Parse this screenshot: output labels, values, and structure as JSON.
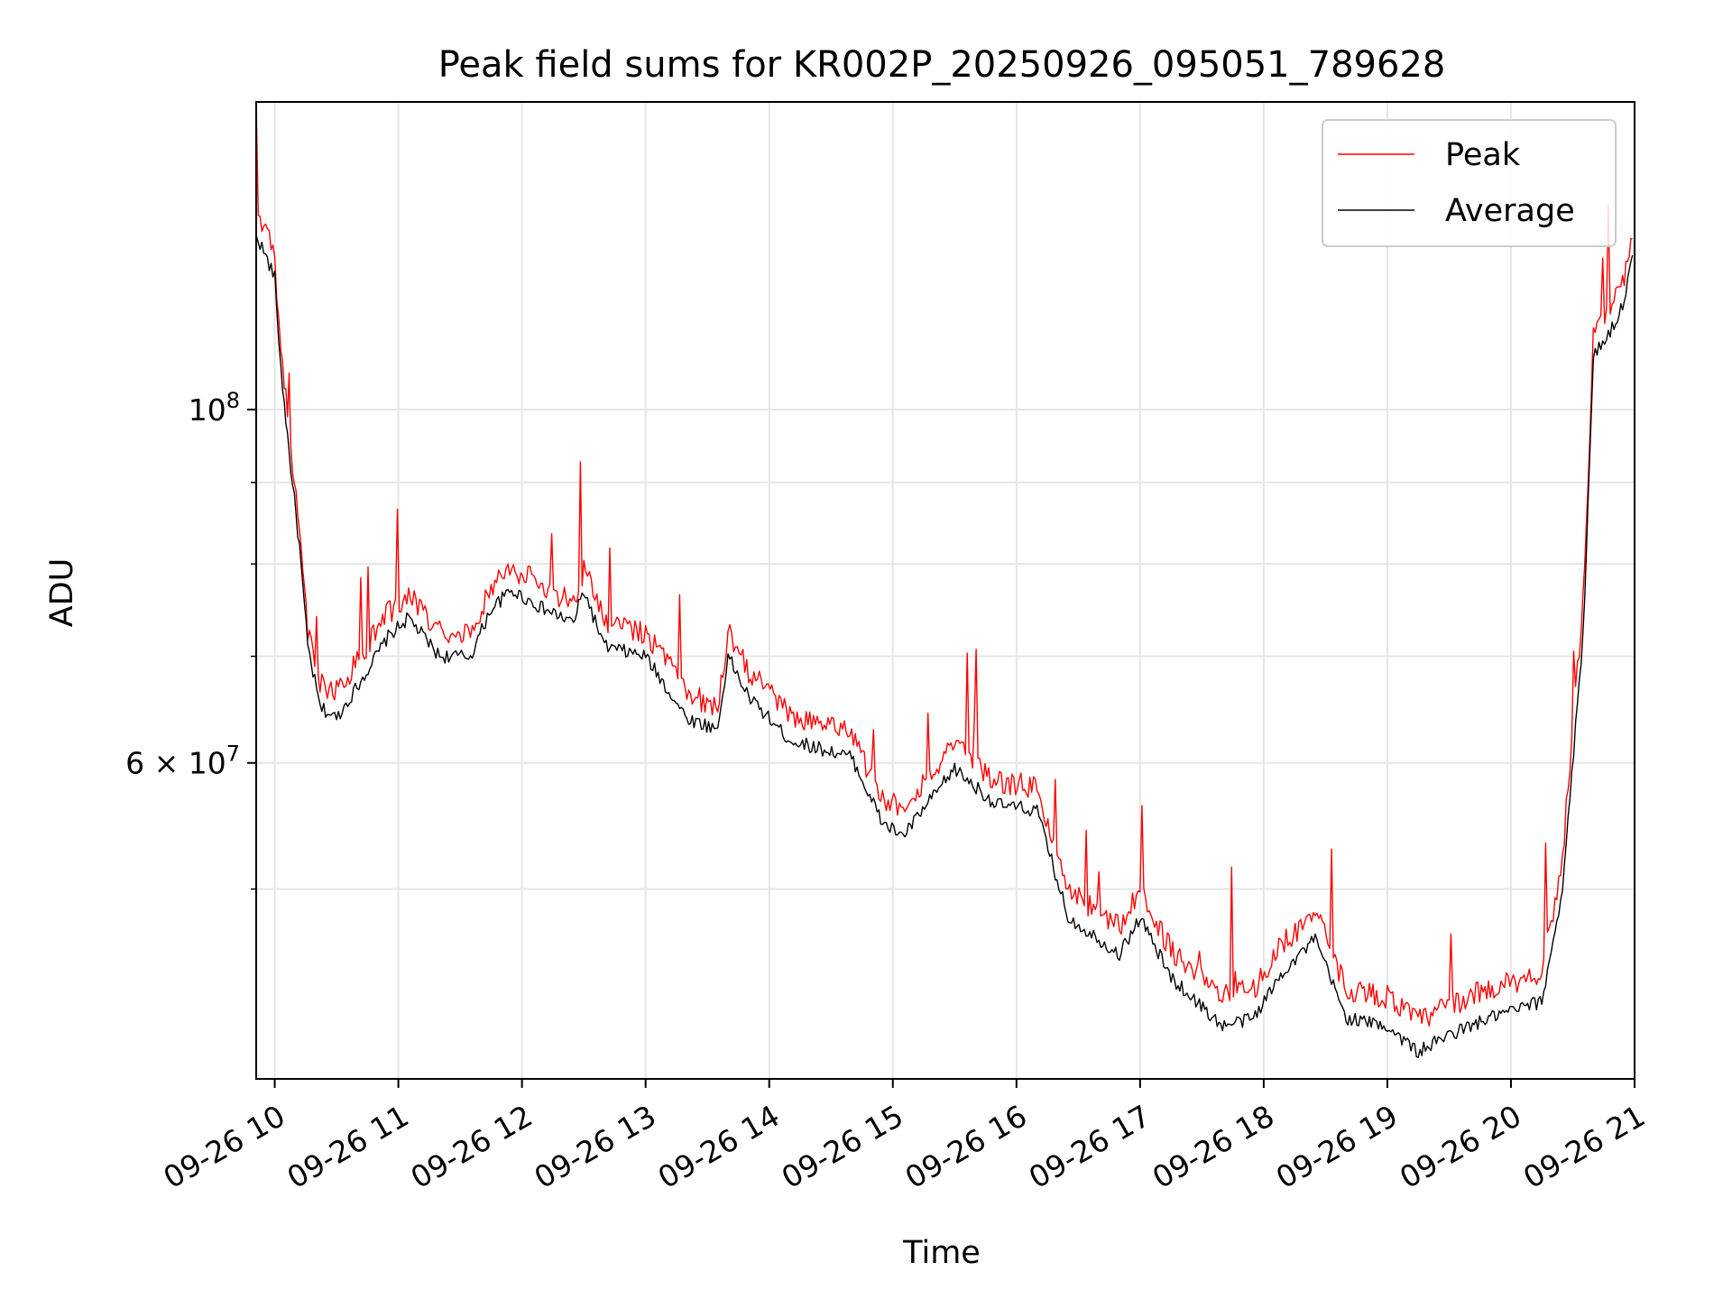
{
  "chart_data": {
    "type": "line",
    "title": "Peak field sums for KR002P_20250926_095051_789628",
    "xlabel": "Time",
    "ylabel": "ADU",
    "y_scale": "log",
    "grid": true,
    "legend_position": "top-right",
    "xlim": [
      "2025-09-26 09:51",
      "2025-09-26 21:00"
    ],
    "ylim": [
      38000000,
      156000000
    ],
    "x_ticks": [
      "09-26 10",
      "09-26 11",
      "09-26 12",
      "09-26 13",
      "09-26 14",
      "09-26 15",
      "09-26 16",
      "09-26 17",
      "09-26 18",
      "09-26 19",
      "09-26 20",
      "09-26 21"
    ],
    "y_ticks": [
      {
        "value": 100000000,
        "base": "10",
        "exp": "8"
      },
      {
        "value": 60000000,
        "base": "6 × 10",
        "exp": "7"
      }
    ],
    "y_minor_ticks": [
      50000000,
      70000000,
      80000000,
      90000000
    ],
    "series": [
      {
        "name": "Peak",
        "color": "#ff0000",
        "x": [
          "2025-09-26 09:51",
          "2025-09-26 09:52",
          "2025-09-26 10:00",
          "2025-09-26 10:03",
          "2025-09-26 10:07",
          "2025-09-26 10:12",
          "2025-09-26 10:16",
          "2025-09-26 10:22",
          "2025-09-26 10:30",
          "2025-09-26 10:40",
          "2025-09-26 10:55",
          "2025-09-26 11:05",
          "2025-09-26 11:20",
          "2025-09-26 11:35",
          "2025-09-26 11:45",
          "2025-09-26 11:55",
          "2025-09-26 12:10",
          "2025-09-26 12:25",
          "2025-09-26 12:30",
          "2025-09-26 12:40",
          "2025-09-26 13:00",
          "2025-09-26 13:20",
          "2025-09-26 13:35",
          "2025-09-26 13:40",
          "2025-09-26 13:50",
          "2025-09-26 14:10",
          "2025-09-26 14:40",
          "2025-09-26 14:55",
          "2025-09-26 15:05",
          "2025-09-26 15:30",
          "2025-09-26 15:50",
          "2025-09-26 16:10",
          "2025-09-26 16:25",
          "2025-09-26 16:40",
          "2025-09-26 16:50",
          "2025-09-26 17:00",
          "2025-09-26 17:15",
          "2025-09-26 17:40",
          "2025-09-26 17:55",
          "2025-09-26 18:10",
          "2025-09-26 18:25",
          "2025-09-26 18:40",
          "2025-09-26 19:00",
          "2025-09-26 19:15",
          "2025-09-26 19:30",
          "2025-09-26 19:50",
          "2025-09-26 20:15",
          "2025-09-26 20:25",
          "2025-09-26 20:35",
          "2025-09-26 20:40",
          "2025-09-26 20:50",
          "2025-09-26 20:55",
          "2025-09-26 20:59"
        ],
        "y": [
          152000000,
          132000000,
          124000000,
          108000000,
          96000000,
          84000000,
          72000000,
          67000000,
          66000000,
          69000000,
          74000000,
          76000000,
          72000000,
          72000000,
          77000000,
          79000000,
          77000000,
          75000000,
          79000000,
          73000000,
          72000000,
          66000000,
          64500000,
          72000000,
          68000000,
          64000000,
          62000000,
          56500000,
          56000000,
          61000000,
          58000000,
          57500000,
          49500000,
          48000000,
          47000000,
          49500000,
          45500000,
          42500000,
          43000000,
          46000000,
          48000000,
          43000000,
          42500000,
          41000000,
          42000000,
          43000000,
          44000000,
          52000000,
          75000000,
          110000000,
          116000000,
          120000000,
          128000000
        ]
      },
      {
        "name": "Average",
        "color": "#000000",
        "x": [
          "2025-09-26 09:51",
          "2025-09-26 09:52",
          "2025-09-26 10:00",
          "2025-09-26 10:03",
          "2025-09-26 10:07",
          "2025-09-26 10:12",
          "2025-09-26 10:16",
          "2025-09-26 10:22",
          "2025-09-26 10:30",
          "2025-09-26 10:40",
          "2025-09-26 10:55",
          "2025-09-26 11:05",
          "2025-09-26 11:20",
          "2025-09-26 11:35",
          "2025-09-26 11:45",
          "2025-09-26 11:55",
          "2025-09-26 12:10",
          "2025-09-26 12:25",
          "2025-09-26 12:30",
          "2025-09-26 12:40",
          "2025-09-26 13:00",
          "2025-09-26 13:20",
          "2025-09-26 13:35",
          "2025-09-26 13:40",
          "2025-09-26 13:50",
          "2025-09-26 14:10",
          "2025-09-26 14:40",
          "2025-09-26 14:55",
          "2025-09-26 15:05",
          "2025-09-26 15:30",
          "2025-09-26 15:50",
          "2025-09-26 16:10",
          "2025-09-26 16:25",
          "2025-09-26 16:40",
          "2025-09-26 16:50",
          "2025-09-26 17:00",
          "2025-09-26 17:15",
          "2025-09-26 17:40",
          "2025-09-26 17:55",
          "2025-09-26 18:10",
          "2025-09-26 18:25",
          "2025-09-26 18:40",
          "2025-09-26 19:00",
          "2025-09-26 19:15",
          "2025-09-26 19:30",
          "2025-09-26 19:50",
          "2025-09-26 20:15",
          "2025-09-26 20:25",
          "2025-09-26 20:35",
          "2025-09-26 20:40",
          "2025-09-26 20:50",
          "2025-09-26 20:55",
          "2025-09-26 20:59"
        ],
        "y": [
          128000000,
          128000000,
          121000000,
          106000000,
          94000000,
          82000000,
          71000000,
          65000000,
          64000000,
          67000000,
          72000000,
          74000000,
          70000000,
          70000000,
          75000000,
          77000000,
          75000000,
          73500000,
          77000000,
          71000000,
          70000000,
          64000000,
          63000000,
          70000000,
          66000000,
          62000000,
          60500000,
          55000000,
          54000000,
          59500000,
          56500000,
          56000000,
          48000000,
          46500000,
          45500000,
          48000000,
          44000000,
          41000000,
          41500000,
          44500000,
          46500000,
          41500000,
          41000000,
          39500000,
          40500000,
          41500000,
          42500000,
          50000000,
          72000000,
          108000000,
          113000000,
          117000000,
          125000000
        ]
      }
    ]
  }
}
